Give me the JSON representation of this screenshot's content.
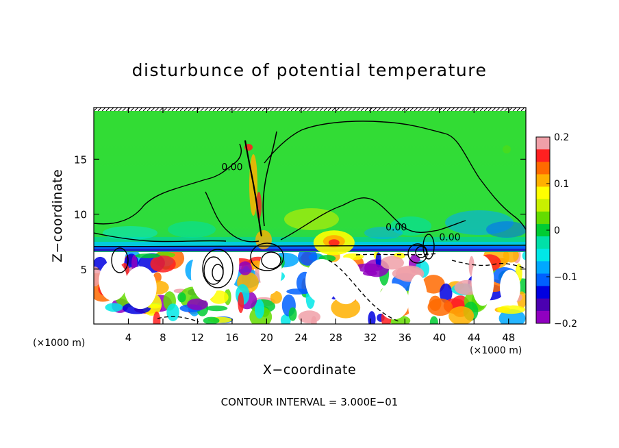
{
  "chart_data": {
    "type": "heatmap",
    "title": "disturbunce of potential temperature",
    "xlabel": "X−coordinate",
    "ylabel": "Z−coordinate",
    "x_unit_left": "(×1000 m)",
    "x_unit_right": "(×1000 m)",
    "footnote": "CONTOUR INTERVAL = 3.000E−01",
    "xlim": [
      0,
      50
    ],
    "ylim": [
      0,
      19.7
    ],
    "x_ticks": [
      {
        "value": 4,
        "label": "4"
      },
      {
        "value": 8,
        "label": "8"
      },
      {
        "value": 12,
        "label": "12"
      },
      {
        "value": 16,
        "label": "16"
      },
      {
        "value": 20,
        "label": "20"
      },
      {
        "value": 24,
        "label": "24"
      },
      {
        "value": 28,
        "label": "28"
      },
      {
        "value": 32,
        "label": "32"
      },
      {
        "value": 36,
        "label": "36"
      },
      {
        "value": 40,
        "label": "40"
      },
      {
        "value": 44,
        "label": "44"
      },
      {
        "value": 48,
        "label": "48"
      }
    ],
    "y_ticks": [
      {
        "value": 5,
        "label": "5"
      },
      {
        "value": 10,
        "label": "10"
      },
      {
        "value": 15,
        "label": "15"
      }
    ],
    "colorbar": {
      "range": [
        -0.2,
        0.2
      ],
      "ticks": [
        {
          "value": 0.2,
          "label": "0.2"
        },
        {
          "value": 0.1,
          "label": "0.1"
        },
        {
          "value": 0,
          "label": "0"
        },
        {
          "value": -0.1,
          "label": "−0.1"
        },
        {
          "value": -0.2,
          "label": "−0.2"
        }
      ],
      "colors": [
        "#f0a0a8",
        "#ff2020",
        "#ff6a00",
        "#ffb000",
        "#ffff00",
        "#c8f000",
        "#64dc00",
        "#00cc33",
        "#00e0a8",
        "#00e8e8",
        "#00a8ff",
        "#0060ff",
        "#0000e0",
        "#4b00b0",
        "#9000c0"
      ]
    },
    "contour_labels": [
      {
        "x": 16,
        "y": 14.0,
        "text": "0.00"
      },
      {
        "x": 35,
        "y": 8.5,
        "text": "0.00"
      },
      {
        "x": 41.2,
        "y": 7.6,
        "text": "0.00"
      }
    ],
    "inversion_height": 6.7,
    "warm_anomaly": {
      "x": 27.8,
      "z": 7.4
    }
  }
}
